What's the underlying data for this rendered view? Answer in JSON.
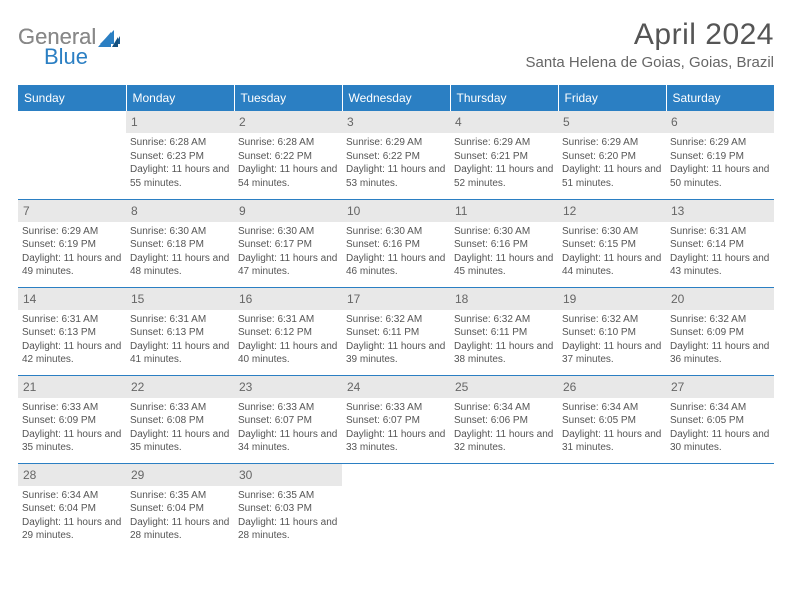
{
  "logo": {
    "part1": "General",
    "part2": "Blue"
  },
  "title": "April 2024",
  "location": "Santa Helena de Goias, Goias, Brazil",
  "colors": {
    "header_bg": "#2b7fc3",
    "header_text": "#ffffff",
    "daynum_bg": "#e8e8e8",
    "border": "#2b7fc3",
    "text": "#555555"
  },
  "day_headers": [
    "Sunday",
    "Monday",
    "Tuesday",
    "Wednesday",
    "Thursday",
    "Friday",
    "Saturday"
  ],
  "weeks": [
    [
      {
        "n": "",
        "sr": "",
        "ss": "",
        "dl": ""
      },
      {
        "n": "1",
        "sr": "6:28 AM",
        "ss": "6:23 PM",
        "dl": "11 hours and 55 minutes."
      },
      {
        "n": "2",
        "sr": "6:28 AM",
        "ss": "6:22 PM",
        "dl": "11 hours and 54 minutes."
      },
      {
        "n": "3",
        "sr": "6:29 AM",
        "ss": "6:22 PM",
        "dl": "11 hours and 53 minutes."
      },
      {
        "n": "4",
        "sr": "6:29 AM",
        "ss": "6:21 PM",
        "dl": "11 hours and 52 minutes."
      },
      {
        "n": "5",
        "sr": "6:29 AM",
        "ss": "6:20 PM",
        "dl": "11 hours and 51 minutes."
      },
      {
        "n": "6",
        "sr": "6:29 AM",
        "ss": "6:19 PM",
        "dl": "11 hours and 50 minutes."
      }
    ],
    [
      {
        "n": "7",
        "sr": "6:29 AM",
        "ss": "6:19 PM",
        "dl": "11 hours and 49 minutes."
      },
      {
        "n": "8",
        "sr": "6:30 AM",
        "ss": "6:18 PM",
        "dl": "11 hours and 48 minutes."
      },
      {
        "n": "9",
        "sr": "6:30 AM",
        "ss": "6:17 PM",
        "dl": "11 hours and 47 minutes."
      },
      {
        "n": "10",
        "sr": "6:30 AM",
        "ss": "6:16 PM",
        "dl": "11 hours and 46 minutes."
      },
      {
        "n": "11",
        "sr": "6:30 AM",
        "ss": "6:16 PM",
        "dl": "11 hours and 45 minutes."
      },
      {
        "n": "12",
        "sr": "6:30 AM",
        "ss": "6:15 PM",
        "dl": "11 hours and 44 minutes."
      },
      {
        "n": "13",
        "sr": "6:31 AM",
        "ss": "6:14 PM",
        "dl": "11 hours and 43 minutes."
      }
    ],
    [
      {
        "n": "14",
        "sr": "6:31 AM",
        "ss": "6:13 PM",
        "dl": "11 hours and 42 minutes."
      },
      {
        "n": "15",
        "sr": "6:31 AM",
        "ss": "6:13 PM",
        "dl": "11 hours and 41 minutes."
      },
      {
        "n": "16",
        "sr": "6:31 AM",
        "ss": "6:12 PM",
        "dl": "11 hours and 40 minutes."
      },
      {
        "n": "17",
        "sr": "6:32 AM",
        "ss": "6:11 PM",
        "dl": "11 hours and 39 minutes."
      },
      {
        "n": "18",
        "sr": "6:32 AM",
        "ss": "6:11 PM",
        "dl": "11 hours and 38 minutes."
      },
      {
        "n": "19",
        "sr": "6:32 AM",
        "ss": "6:10 PM",
        "dl": "11 hours and 37 minutes."
      },
      {
        "n": "20",
        "sr": "6:32 AM",
        "ss": "6:09 PM",
        "dl": "11 hours and 36 minutes."
      }
    ],
    [
      {
        "n": "21",
        "sr": "6:33 AM",
        "ss": "6:09 PM",
        "dl": "11 hours and 35 minutes."
      },
      {
        "n": "22",
        "sr": "6:33 AM",
        "ss": "6:08 PM",
        "dl": "11 hours and 35 minutes."
      },
      {
        "n": "23",
        "sr": "6:33 AM",
        "ss": "6:07 PM",
        "dl": "11 hours and 34 minutes."
      },
      {
        "n": "24",
        "sr": "6:33 AM",
        "ss": "6:07 PM",
        "dl": "11 hours and 33 minutes."
      },
      {
        "n": "25",
        "sr": "6:34 AM",
        "ss": "6:06 PM",
        "dl": "11 hours and 32 minutes."
      },
      {
        "n": "26",
        "sr": "6:34 AM",
        "ss": "6:05 PM",
        "dl": "11 hours and 31 minutes."
      },
      {
        "n": "27",
        "sr": "6:34 AM",
        "ss": "6:05 PM",
        "dl": "11 hours and 30 minutes."
      }
    ],
    [
      {
        "n": "28",
        "sr": "6:34 AM",
        "ss": "6:04 PM",
        "dl": "11 hours and 29 minutes."
      },
      {
        "n": "29",
        "sr": "6:35 AM",
        "ss": "6:04 PM",
        "dl": "11 hours and 28 minutes."
      },
      {
        "n": "30",
        "sr": "6:35 AM",
        "ss": "6:03 PM",
        "dl": "11 hours and 28 minutes."
      },
      {
        "n": "",
        "sr": "",
        "ss": "",
        "dl": ""
      },
      {
        "n": "",
        "sr": "",
        "ss": "",
        "dl": ""
      },
      {
        "n": "",
        "sr": "",
        "ss": "",
        "dl": ""
      },
      {
        "n": "",
        "sr": "",
        "ss": "",
        "dl": ""
      }
    ]
  ],
  "labels": {
    "sunrise": "Sunrise: ",
    "sunset": "Sunset: ",
    "daylight": "Daylight: "
  }
}
